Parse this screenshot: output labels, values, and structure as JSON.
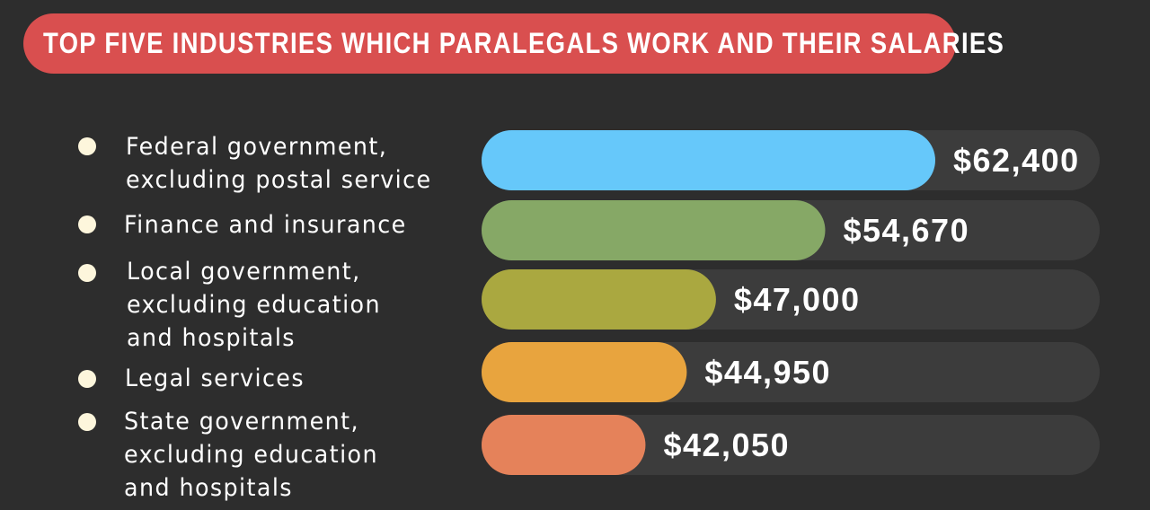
{
  "title": "TOP FIVE INDUSTRIES WHICH PARALEGALS WORK AND THEIR SALARIES",
  "chart_data": {
    "type": "bar",
    "orientation": "horizontal",
    "title": "TOP FIVE INDUSTRIES WHICH PARALEGALS WORK AND THEIR SALARIES",
    "categories": [
      "Federal government,\nexcluding postal service",
      "Finance and insurance",
      "Local government,\nexcluding education\nand hospitals",
      "Legal services",
      "State government,\nexcluding education\nand hospitals"
    ],
    "values": [
      62400,
      54670,
      47000,
      44950,
      42050
    ],
    "value_labels": [
      "$62,400",
      "$54,670",
      "$47,000",
      "$44,950",
      "$42,050"
    ],
    "colors": [
      "#66c8fa",
      "#86a866",
      "#aaa840",
      "#e8a43e",
      "#e5825a"
    ],
    "track_color": "#3c3c3c",
    "grid": false,
    "legend": "none"
  }
}
